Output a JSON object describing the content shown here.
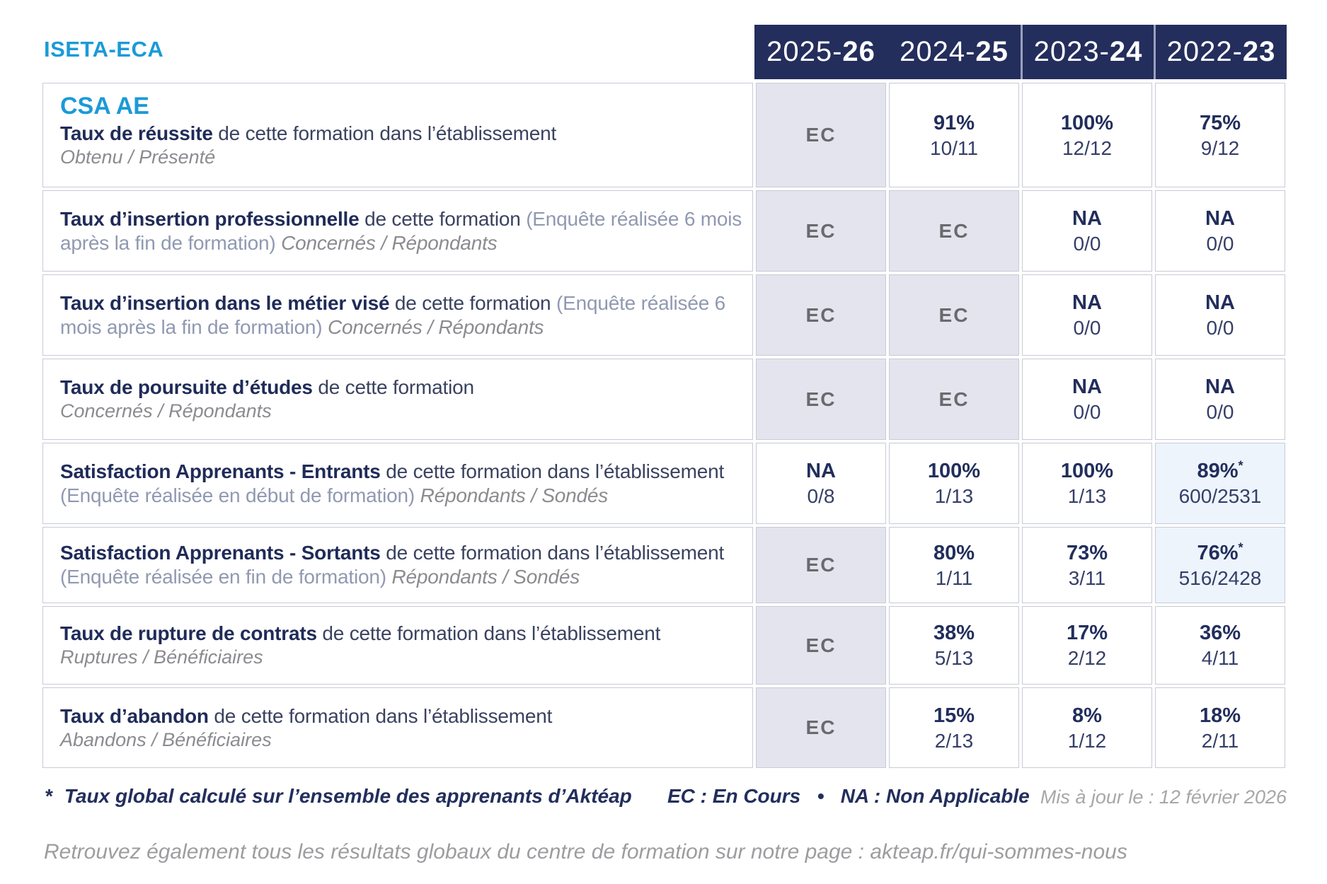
{
  "colors": {
    "accent_blue": "#1b9ad8",
    "navy_text": "#1f2b58",
    "header_bg": "#242e5c",
    "ec_cell_bg": "#e4e4ee",
    "highlight_cell_bg": "#edf4fb"
  },
  "brand": "ISETA-ECA",
  "header": {
    "years": [
      {
        "pre": "2025-",
        "bold": "26"
      },
      {
        "pre": "2024-",
        "bold": "25"
      },
      {
        "pre": "2023-",
        "bold": "24"
      },
      {
        "pre": "2022-",
        "bold": "23"
      }
    ]
  },
  "table": {
    "group_title": "CSA AE",
    "rows": [
      {
        "title": "Taux de réussite",
        "normal": " de cette formation dans l’établissement",
        "sub": "Obtenu / Présenté",
        "cells": [
          {
            "main": "EC"
          },
          {
            "main": "91%",
            "frac": "10/11"
          },
          {
            "main": "100%",
            "frac": "12/12"
          },
          {
            "main": "75%",
            "frac": "9/12"
          }
        ]
      },
      {
        "title": "Taux d’insertion professionnelle",
        "normal": " de cette formation ",
        "paren": "(Enquête réalisée 6 mois après la fin de formation) ",
        "inline_sub": "Concernés / Répondants",
        "cells": [
          {
            "main": "EC"
          },
          {
            "main": "EC"
          },
          {
            "main": "NA",
            "frac": "0/0"
          },
          {
            "main": "NA",
            "frac": "0/0"
          }
        ]
      },
      {
        "title": "Taux d’insertion dans le métier visé",
        "normal": " de cette formation ",
        "paren": "(Enquête réalisée 6 mois après la fin de formation) ",
        "inline_sub": "Concernés / Répondants",
        "cells": [
          {
            "main": "EC"
          },
          {
            "main": "EC"
          },
          {
            "main": "NA",
            "frac": "0/0"
          },
          {
            "main": "NA",
            "frac": "0/0"
          }
        ]
      },
      {
        "title": "Taux de poursuite d’études",
        "normal": " de cette formation",
        "sub": "Concernés / Répondants",
        "cells": [
          {
            "main": "EC"
          },
          {
            "main": "EC"
          },
          {
            "main": "NA",
            "frac": "0/0"
          },
          {
            "main": "NA",
            "frac": "0/0"
          }
        ]
      },
      {
        "title": "Satisfaction Apprenants - Entrants",
        "normal": " de cette formation dans l’établissement ",
        "paren": "(Enquête réalisée en début de formation) ",
        "inline_sub": "Répondants / Sondés",
        "cells": [
          {
            "main": "NA",
            "frac": "0/8"
          },
          {
            "main": "100%",
            "frac": "1/13"
          },
          {
            "main": "100%",
            "frac": "1/13"
          },
          {
            "main": "89%",
            "star": "*",
            "frac": "600/2531"
          }
        ]
      },
      {
        "title": "Satisfaction Apprenants - Sortants",
        "normal": " de cette formation dans l’établissement ",
        "paren": "(Enquête réalisée en fin de formation) ",
        "inline_sub": "Répondants / Sondés",
        "cells": [
          {
            "main": "EC"
          },
          {
            "main": "80%",
            "frac": "1/11"
          },
          {
            "main": "73%",
            "frac": "3/11"
          },
          {
            "main": "76%",
            "star": "*",
            "frac": "516/2428"
          }
        ]
      },
      {
        "title": "Taux de rupture de contrats",
        "normal": " de cette formation dans l’établissement",
        "sub": "Ruptures / Bénéficiaires",
        "cells": [
          {
            "main": "EC"
          },
          {
            "main": "38%",
            "frac": "5/13"
          },
          {
            "main": "17%",
            "frac": "2/12"
          },
          {
            "main": "36%",
            "frac": "4/11"
          }
        ]
      },
      {
        "title": "Taux d’abandon",
        "normal": " de cette formation dans l’établissement",
        "sub": "Abandons / Bénéficiaires",
        "cells": [
          {
            "main": "EC"
          },
          {
            "main": "15%",
            "frac": "2/13"
          },
          {
            "main": "8%",
            "frac": "1/12"
          },
          {
            "main": "18%",
            "frac": "2/11"
          }
        ]
      }
    ]
  },
  "footer": {
    "star": "*",
    "note": "Taux global calculé sur l’ensemble des apprenants d’Aktéap",
    "legend": "EC : En Cours   •   NA : Non Applicable",
    "updated": "Mis à jour le : 12 février 2026",
    "bottom": "Retrouvez également tous les résultats globaux du centre de formation sur notre page : akteap.fr/qui-sommes-nous"
  }
}
